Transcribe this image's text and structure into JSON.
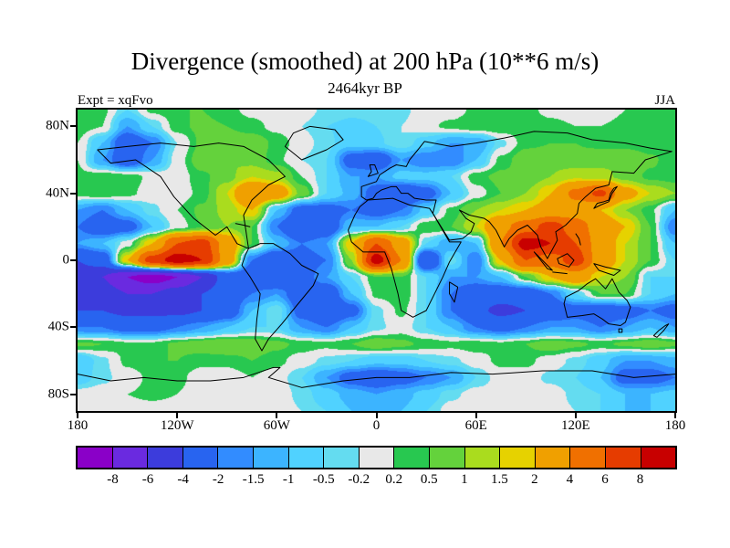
{
  "page": {
    "title": "Divergence (smoothed) at 200 hPa (10**6 m/s)",
    "subtitle": "2464kyr BP",
    "experiment": "Expt = xqFvo",
    "season": "JJA"
  },
  "axes": {
    "y_ticks": [
      "80N",
      "40N",
      "0",
      "40S",
      "80S"
    ],
    "y_tick_lats": [
      80,
      40,
      0,
      -40,
      -80
    ],
    "x_ticks": [
      "180",
      "120W",
      "60W",
      "0",
      "60E",
      "120E",
      "180"
    ],
    "x_tick_lons": [
      -180,
      -120,
      -60,
      0,
      60,
      120,
      180
    ]
  },
  "chart_data": {
    "type": "heatmap",
    "title": "Divergence (smoothed) at 200 hPa (10**6 m/s)",
    "subtitle": "2464kyr BP",
    "annotations": [
      "Expt = xqFvo",
      "JJA"
    ],
    "projection": "equirectangular",
    "lon_range": [
      -180,
      180
    ],
    "lat_range": [
      -90,
      90
    ],
    "units": "10**6 m/s",
    "colorbar": {
      "labels": [
        "-8",
        "-6",
        "-4",
        "-2",
        "-1.5",
        "-1",
        "-0.5",
        "-0.2",
        "0.2",
        "0.5",
        "1",
        "1.5",
        "2",
        "4",
        "6",
        "8"
      ],
      "boundaries": [
        -8,
        -6,
        -4,
        -2,
        -1.5,
        -1,
        -0.5,
        -0.2,
        0.2,
        0.5,
        1,
        1.5,
        2,
        4,
        6,
        8
      ],
      "colors": [
        "#8a00c8",
        "#6a2ae0",
        "#3c3cdc",
        "#2864f0",
        "#328cff",
        "#3cb4ff",
        "#50d2ff",
        "#64dcf0",
        "#e8e8e8",
        "#28c850",
        "#64d23c",
        "#aadc1e",
        "#e6d200",
        "#f0a000",
        "#f07000",
        "#e63c00",
        "#c80000"
      ]
    },
    "grid": {
      "lats": [
        90,
        80,
        70,
        60,
        50,
        40,
        30,
        20,
        10,
        0,
        -10,
        -20,
        -30,
        -40,
        -50,
        -60,
        -70,
        -80,
        -90
      ],
      "lons": [
        -180,
        -165,
        -150,
        -135,
        -120,
        -105,
        -90,
        -75,
        -60,
        -45,
        -30,
        -15,
        0,
        15,
        30,
        45,
        60,
        75,
        90,
        105,
        120,
        135,
        150,
        165,
        180
      ],
      "values": [
        [
          0.4,
          0.3,
          -0.5,
          0.3,
          0.5,
          0.5,
          0.3,
          0.1,
          0,
          0,
          -0.3,
          -0.4,
          -0.4,
          -0.3,
          0,
          0,
          0.3,
          0.4,
          0.3,
          0.1,
          0,
          0,
          0.2,
          0.4,
          0.4
        ],
        [
          0.4,
          0.2,
          -1.5,
          -0.5,
          0.4,
          0.6,
          0.5,
          0.3,
          0.1,
          -0.2,
          -0.5,
          -0.6,
          -0.5,
          -0.2,
          0.1,
          0.3,
          0.5,
          0.5,
          0.4,
          0.3,
          0.2,
          0.2,
          0.3,
          0.5,
          0.4
        ],
        [
          0.2,
          -1,
          -3,
          -2,
          -0.2,
          0.6,
          0.8,
          0.8,
          0.4,
          0,
          -0.4,
          -0.8,
          -0.6,
          -0.2,
          -0.8,
          -1.5,
          -1.5,
          -0.3,
          0.4,
          0.5,
          0.5,
          0.4,
          0.3,
          0.2,
          0.2
        ],
        [
          0.2,
          -1.5,
          -3,
          -1.5,
          0,
          0.8,
          1,
          0.8,
          0.3,
          -0.2,
          -0.5,
          -2.5,
          -3,
          -1.5,
          -2,
          -2,
          -1,
          0.3,
          0.8,
          0.8,
          0.6,
          0.8,
          1,
          0.6,
          0.2
        ],
        [
          0.3,
          0.5,
          0.4,
          0.1,
          0,
          0.4,
          0.8,
          1.5,
          1.2,
          0.2,
          -0.5,
          -1.5,
          -1.5,
          -0.8,
          -0.8,
          -0.5,
          0.4,
          0.6,
          0.6,
          1,
          1.4,
          1.2,
          0.8,
          0.4,
          0.3
        ],
        [
          0.4,
          0.5,
          0.3,
          0,
          0,
          0.3,
          1.5,
          4,
          3,
          0.8,
          -0.5,
          -1.2,
          -2.5,
          -3.5,
          -2.5,
          -1,
          0,
          0.5,
          1,
          2,
          4.5,
          6.5,
          2.5,
          1.5,
          1
        ],
        [
          -1.5,
          -2,
          -1,
          -0.3,
          0.2,
          0.6,
          1.2,
          2,
          -1,
          -2.5,
          -2.5,
          -2,
          -2.5,
          -2,
          -0.8,
          0.3,
          1,
          1.5,
          2,
          2.5,
          3,
          2,
          1,
          0.3,
          -1
        ],
        [
          -2,
          -3,
          -2.5,
          -1,
          0,
          0.5,
          1,
          0.5,
          -2,
          -4,
          -3,
          -1,
          -1,
          -0.5,
          0.5,
          0.5,
          1.5,
          3.5,
          5,
          7,
          5,
          3,
          2,
          0.5,
          -2
        ],
        [
          -1.5,
          -1,
          0,
          2,
          6,
          7,
          3,
          0.5,
          -1,
          -2,
          -1.5,
          2,
          6,
          3,
          -0.5,
          -1.5,
          -1,
          4,
          9,
          8,
          6,
          3,
          1.5,
          0.5,
          -1
        ],
        [
          -4,
          -3,
          2,
          7,
          9,
          8,
          3,
          -2,
          -3.5,
          -2.5,
          -2,
          1,
          9,
          4,
          -4,
          -0.3,
          -2,
          2,
          6,
          5,
          7,
          3,
          1.5,
          0.5,
          -0.5
        ],
        [
          -5,
          -6,
          -8,
          -9,
          -8,
          -6,
          -3,
          -3,
          -4,
          -2.5,
          -1.5,
          -0.5,
          0.5,
          0.5,
          -0.5,
          -1.5,
          -1.5,
          -1,
          0.5,
          2,
          3,
          1.5,
          1,
          -0.5,
          -0.5
        ],
        [
          -4,
          -5,
          -6,
          -6,
          -5,
          -4,
          -3,
          -2,
          -1.5,
          -3,
          -3,
          -1,
          0.3,
          0.5,
          -0.5,
          -2,
          -3,
          -3,
          -3,
          -2,
          -0.5,
          0.5,
          0.5,
          -0.5,
          -1
        ],
        [
          -4,
          -4,
          -4.5,
          -4.5,
          -4.5,
          -4,
          -3,
          -1,
          -0.2,
          -2.5,
          -4,
          -2.5,
          -0.3,
          0.3,
          -0.5,
          -2,
          -3.5,
          -4.5,
          -4,
          -3,
          -2.5,
          -3,
          -2.5,
          -2,
          -2.5
        ],
        [
          -2,
          -2,
          -2.5,
          -2.5,
          -2,
          -1.5,
          -1,
          -0.5,
          -0.5,
          -1.5,
          -2,
          -1,
          -0.3,
          0,
          -0.5,
          -1,
          -2,
          -2.5,
          -2,
          -1.5,
          -1.5,
          -2,
          -1.5,
          -1,
          -1.5
        ],
        [
          0.6,
          0.5,
          0.3,
          0.3,
          0.6,
          0.8,
          1,
          0.8,
          0.6,
          0.4,
          0.3,
          0.5,
          0.8,
          0.6,
          0.4,
          0.3,
          0.4,
          0.3,
          0.5,
          0.8,
          0.6,
          0.4,
          0.6,
          0.8,
          0.6
        ],
        [
          -1,
          -0.3,
          0.3,
          0.5,
          0.5,
          0.3,
          0.3,
          0.5,
          0.3,
          0,
          -0.3,
          -0.5,
          -0.8,
          -0.8,
          -0.5,
          -0.3,
          0,
          0.3,
          0.3,
          0,
          -0.3,
          -0.8,
          -1.5,
          -1.5,
          -1.2
        ],
        [
          -0.8,
          -0.3,
          0,
          0.3,
          0.3,
          0,
          0,
          0.2,
          0,
          -0.5,
          -1.5,
          -2.5,
          -3,
          -2.5,
          -2,
          -1.5,
          -0.5,
          0,
          0,
          -0.3,
          -0.5,
          -1,
          -2.5,
          -2.5,
          -2
        ],
        [
          0,
          0,
          0.2,
          0.3,
          0.2,
          0,
          0,
          0,
          0,
          -0.3,
          -0.8,
          -1.2,
          -1.5,
          -1.2,
          -0.8,
          -0.3,
          0,
          0,
          0,
          0,
          -0.3,
          -0.5,
          -1,
          -1,
          -0.8
        ],
        [
          0,
          0,
          0,
          0,
          0,
          0,
          0,
          0,
          0,
          -0.2,
          -0.5,
          -1,
          -1.2,
          -1,
          -0.5,
          0,
          0,
          0,
          0,
          0,
          -0.2,
          -0.5,
          -1,
          -1,
          -0.8
        ]
      ]
    }
  }
}
